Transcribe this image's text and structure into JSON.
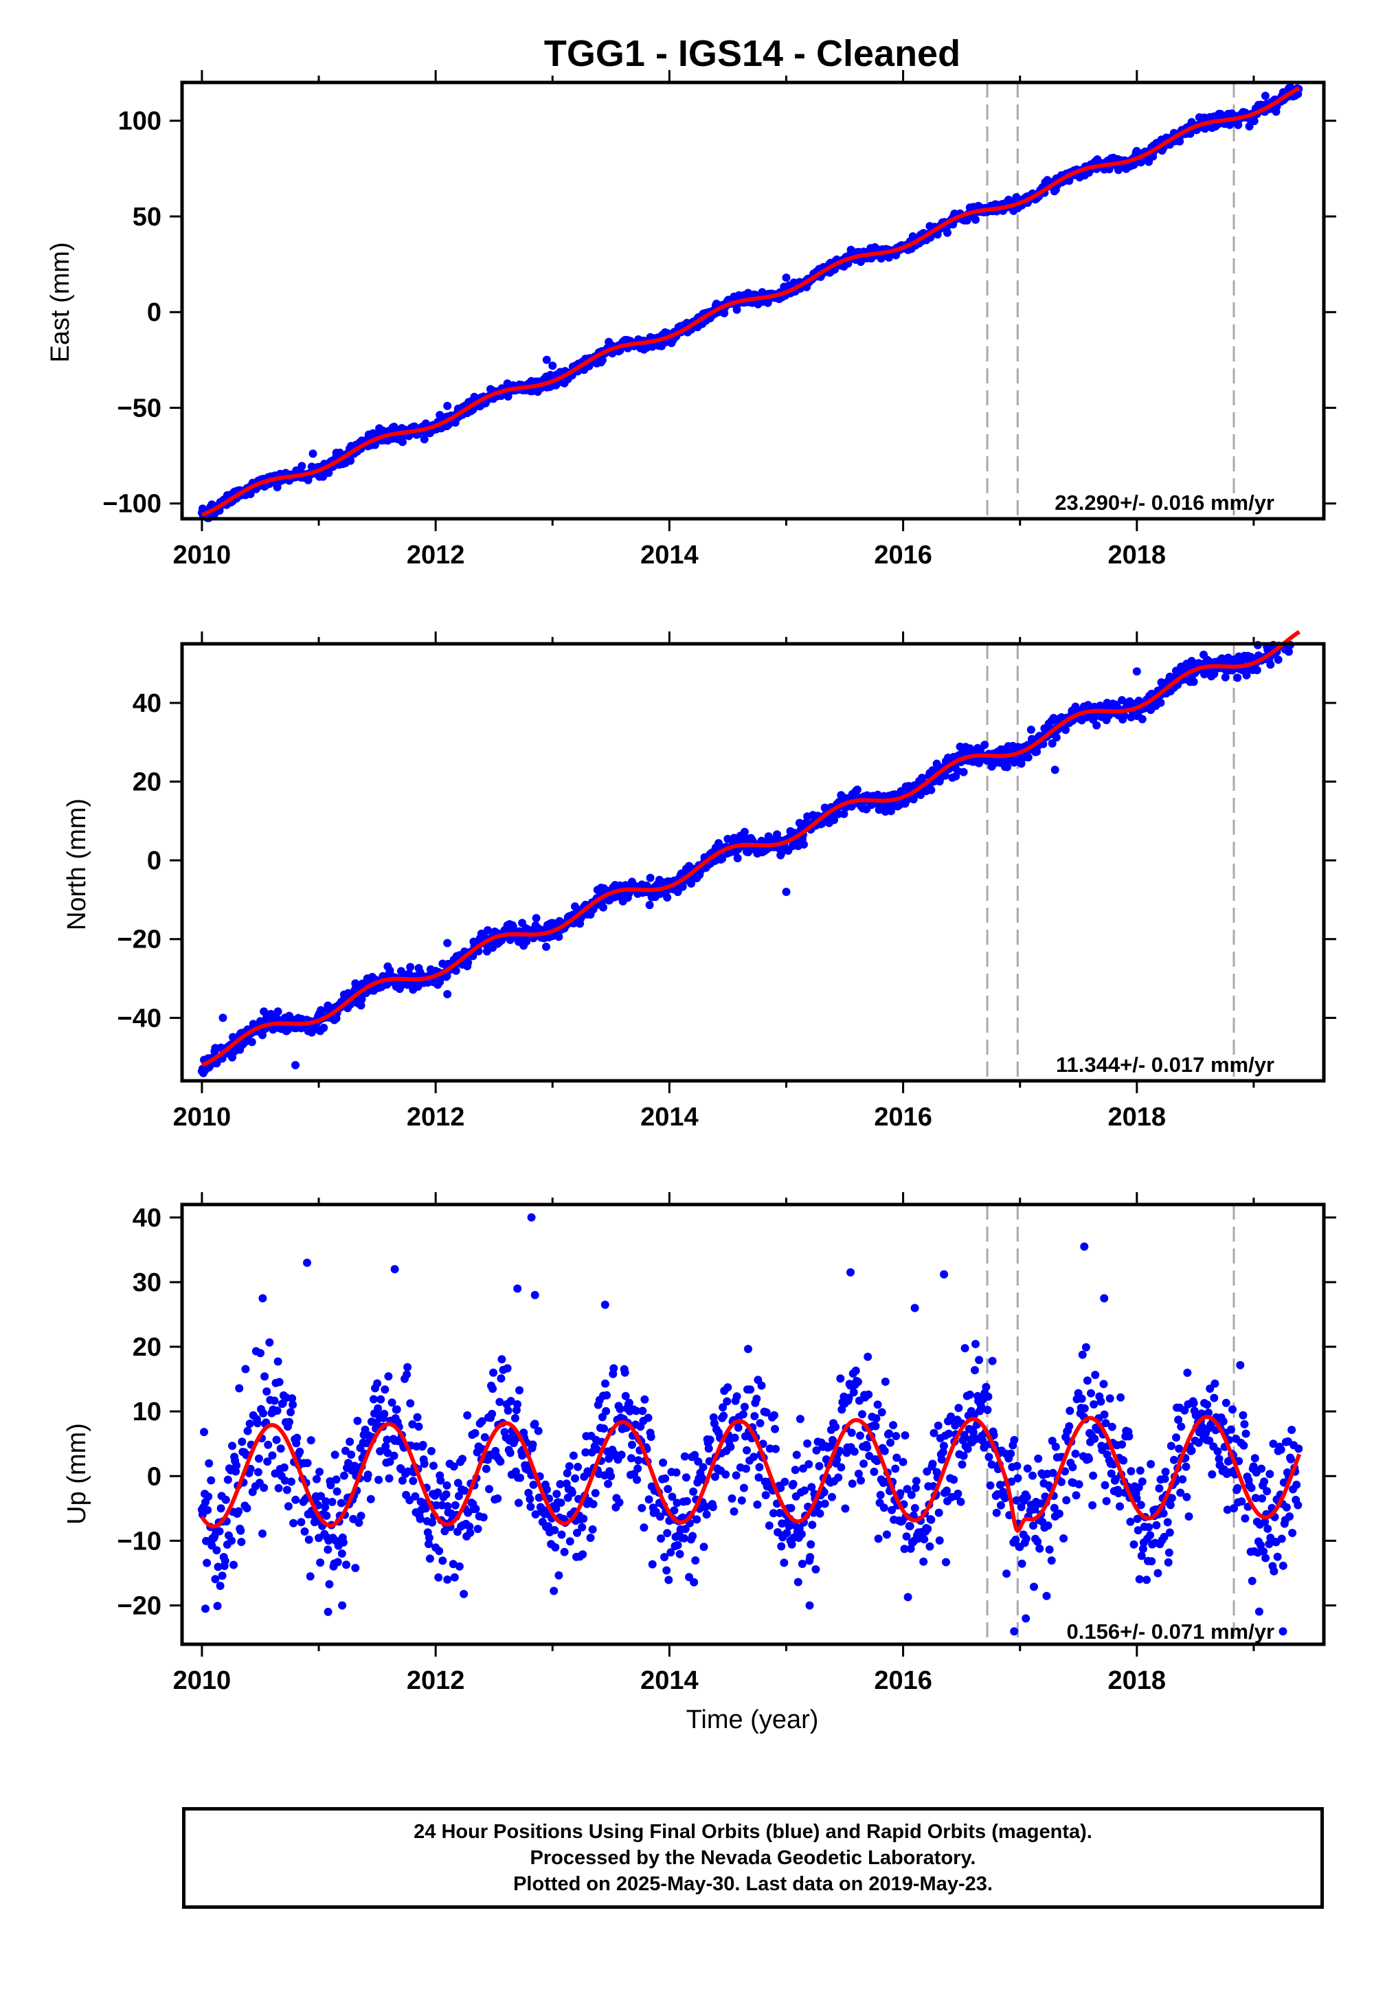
{
  "title": "TGG1  - IGS14 - Cleaned",
  "xlabel": "Time (year)",
  "footer": {
    "line1": "24 Hour Positions Using Final Orbits (blue) and Rapid Orbits (magenta).",
    "line2": "Processed by the Nevada Geodetic Laboratory.",
    "line3": "Plotted on 2025-May-30. Last data on 2019-May-23."
  },
  "colors": {
    "data": "#0000ff",
    "model": "#ff0000",
    "breaks": "#aaaaaa",
    "frame": "#000000"
  },
  "chart_data": [
    {
      "type": "scatter",
      "panel": "east",
      "ylabel": "East (mm)",
      "xlim": [
        2009.83,
        2019.6
      ],
      "ylim": [
        -108,
        120
      ],
      "xticks": [
        2010,
        2012,
        2014,
        2016,
        2018
      ],
      "yticks": [
        -100,
        -50,
        0,
        50,
        100
      ],
      "grid": false,
      "velocity_label": "23.290+/- 0.016 mm/yr",
      "model": {
        "rate": 23.29,
        "offset_at_2010": -103.5,
        "annual_amp": 2.5,
        "annual_phase": 0.25,
        "noise": 1.7
      },
      "breaks": [
        2016.72,
        2016.98,
        2018.83
      ],
      "outliers": [
        [
          2012.95,
          -25
        ],
        [
          2010.95,
          -74
        ],
        [
          2013.0,
          -28
        ],
        [
          2017.1,
          61
        ],
        [
          2019.1,
          113
        ],
        [
          2012.1,
          -49
        ],
        [
          2015.0,
          18
        ]
      ]
    },
    {
      "type": "scatter",
      "panel": "north",
      "ylabel": "North (mm)",
      "xlim": [
        2009.83,
        2019.6
      ],
      "ylim": [
        -56,
        55
      ],
      "xticks": [
        2010,
        2012,
        2014,
        2016,
        2018
      ],
      "yticks": [
        -40,
        -20,
        0,
        20,
        40
      ],
      "grid": false,
      "velocity_label": "11.344+/- 0.017 mm/yr",
      "model": {
        "rate": 11.344,
        "offset_at_2010": -50.0,
        "annual_amp": 2.0,
        "annual_phase": 0.25,
        "noise": 1.3
      },
      "breaks": [
        2016.72,
        2016.98,
        2018.83
      ],
      "outliers": [
        [
          2010.18,
          -40
        ],
        [
          2012.1,
          -21
        ],
        [
          2015.0,
          -8
        ],
        [
          2017.3,
          23
        ],
        [
          2018.0,
          48
        ],
        [
          2010.8,
          -52
        ],
        [
          2012.1,
          -34
        ],
        [
          2016.9,
          29
        ],
        [
          2019.3,
          53
        ]
      ]
    },
    {
      "type": "scatter",
      "panel": "up",
      "ylabel": "Up (mm)",
      "xlim": [
        2009.83,
        2019.6
      ],
      "ylim": [
        -26,
        42
      ],
      "xticks": [
        2010,
        2012,
        2014,
        2016,
        2018
      ],
      "yticks": [
        -20,
        -10,
        0,
        10,
        20,
        30,
        40
      ],
      "grid": false,
      "velocity_label": "0.156+/- 0.071 mm/yr",
      "model": {
        "rate": 0.156,
        "offset_at_2010": 0.0,
        "annual_amp": 7.8,
        "annual_phase": 0.35,
        "noise": 5.2
      },
      "breaks": [
        2016.72,
        2016.98,
        2018.83
      ],
      "outliers": [
        [
          2012.82,
          40
        ],
        [
          2010.9,
          33
        ],
        [
          2017.55,
          35.5
        ],
        [
          2011.65,
          32
        ],
        [
          2015.55,
          31.5
        ],
        [
          2016.35,
          31.2
        ],
        [
          2010.52,
          27.5
        ],
        [
          2012.7,
          29
        ],
        [
          2013.45,
          26.5
        ],
        [
          2016.1,
          26
        ],
        [
          2012.85,
          28
        ],
        [
          2017.72,
          27.5
        ],
        [
          2016.95,
          -24
        ],
        [
          2019.25,
          -24
        ],
        [
          2011.08,
          -21
        ],
        [
          2017.05,
          -22
        ],
        [
          2011.2,
          -20
        ],
        [
          2015.2,
          -20
        ],
        [
          2010.03,
          -20.5
        ],
        [
          2012.1,
          -16
        ]
      ]
    }
  ]
}
